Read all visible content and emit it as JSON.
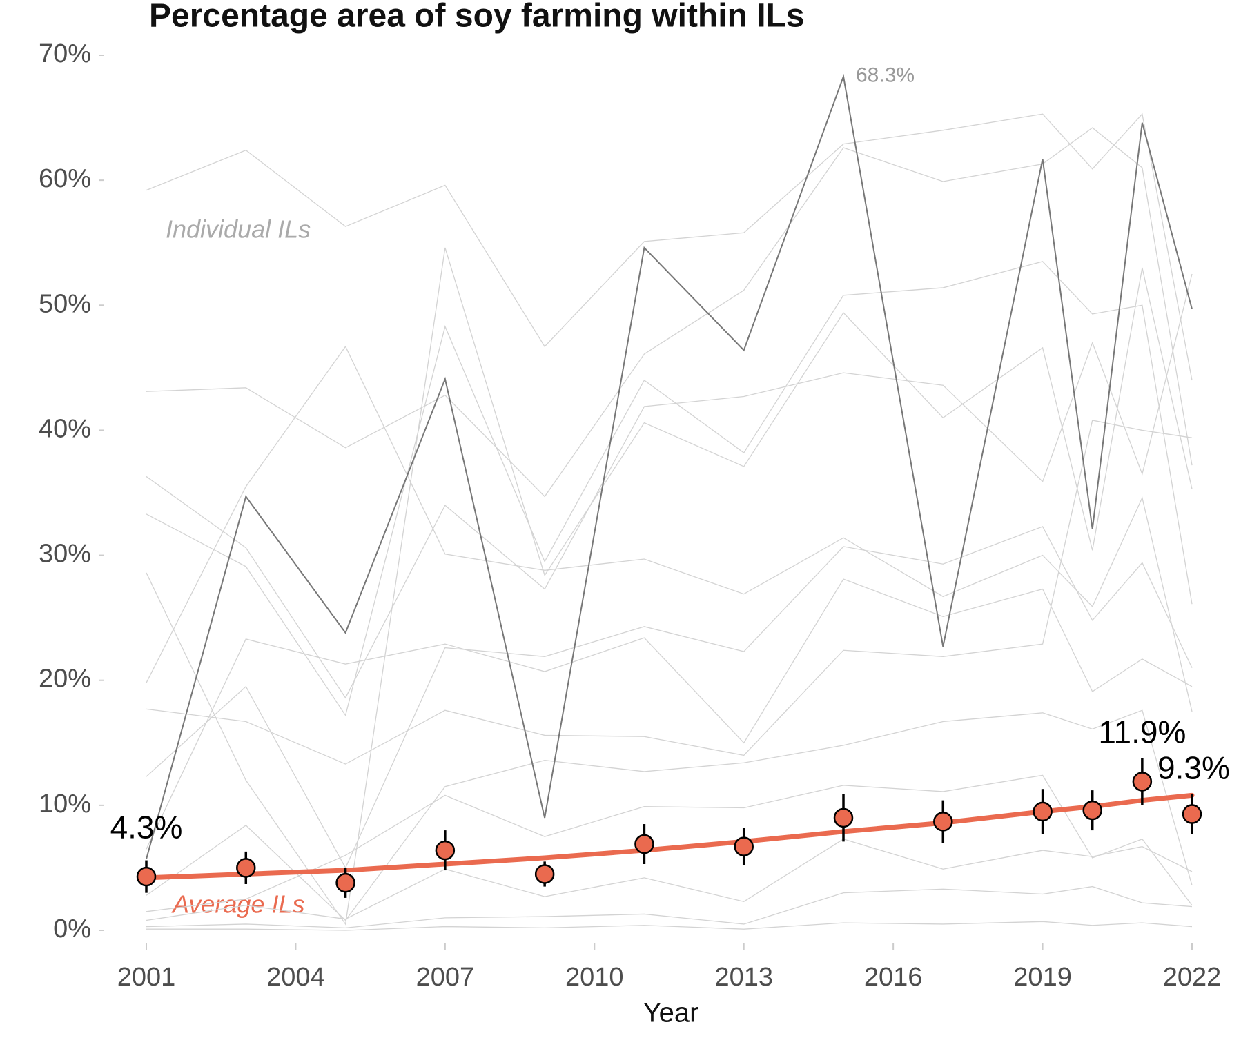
{
  "chart_data": {
    "type": "line",
    "title": "Percentage area of soy farming within ILs",
    "x_label": "Year",
    "annotations": [
      "Individual ILs"
    ],
    "x": [
      2001,
      2003,
      2005,
      2007,
      2009,
      2011,
      2013,
      2015,
      2017,
      2019,
      2020,
      2021,
      2022
    ],
    "xlim": [
      2000.2,
      2022.8
    ],
    "xticks": [
      2001,
      2004,
      2007,
      2010,
      2013,
      2016,
      2019,
      2022
    ],
    "ylim": [
      0,
      70
    ],
    "yticks": [
      {
        "value": 0,
        "label": "0%"
      },
      {
        "value": 10,
        "label": "10%"
      },
      {
        "value": 20,
        "label": "20%"
      },
      {
        "value": 30,
        "label": "30%"
      },
      {
        "value": 40,
        "label": "40%"
      },
      {
        "value": 50,
        "label": "50%"
      },
      {
        "value": 60,
        "label": "60%"
      },
      {
        "value": 70,
        "label": "70%"
      }
    ],
    "grid": false,
    "series": [
      {
        "style": "thin",
        "color": "#d3d3d3",
        "values": [
          59.2,
          62.4,
          56.3,
          59.6,
          46.7,
          55.1,
          55.8,
          62.9,
          64.0,
          65.3,
          60.9,
          65.3,
          44.0
        ]
      },
      {
        "style": "thin",
        "color": "#d3d3d3",
        "values": [
          43.1,
          43.4,
          38.6,
          42.8,
          34.7,
          46.1,
          51.2,
          62.6,
          59.9,
          61.3,
          64.2,
          61.0,
          37.2
        ]
      },
      {
        "style": "thin",
        "color": "#d3d3d3",
        "values": [
          36.3,
          30.6,
          18.6,
          34.0,
          27.3,
          41.9,
          42.7,
          44.6,
          43.6,
          35.9,
          47.0,
          36.5,
          52.5
        ]
      },
      {
        "style": "thin",
        "color": "#d3d3d3",
        "values": [
          33.3,
          29.1,
          17.2,
          48.3,
          29.5,
          44.0,
          38.2,
          50.8,
          51.4,
          53.5,
          49.3,
          50.0,
          26.1
        ]
      },
      {
        "style": "thin",
        "color": "#d3d3d3",
        "values": [
          28.6,
          12.0,
          0.5,
          54.6,
          28.4,
          40.6,
          37.1,
          49.4,
          41.0,
          46.6,
          30.4,
          53.0,
          35.3
        ]
      },
      {
        "style": "thin",
        "color": "#d3d3d3",
        "values": [
          19.8,
          35.5,
          46.7,
          30.1,
          28.8,
          29.7,
          26.9,
          31.4,
          26.7,
          30.0,
          25.9,
          34.6,
          17.5
        ]
      },
      {
        "style": "thin",
        "color": "#d3d3d3",
        "values": [
          17.7,
          16.7,
          13.3,
          17.6,
          15.6,
          15.5,
          14.0,
          22.4,
          21.9,
          22.9,
          40.8,
          40.0,
          39.4
        ]
      },
      {
        "style": "thin",
        "color": "#d3d3d3",
        "values": [
          12.3,
          19.5,
          5.0,
          22.6,
          21.9,
          24.3,
          22.3,
          30.7,
          29.3,
          32.3,
          24.8,
          29.4,
          21.0
        ]
      },
      {
        "style": "thin",
        "color": "#d3d3d3",
        "values": [
          6.5,
          23.3,
          21.3,
          22.9,
          20.7,
          23.4,
          15.0,
          28.1,
          25.1,
          27.3,
          19.1,
          21.7,
          19.5
        ]
      },
      {
        "style": "thin",
        "color": "#d3d3d3",
        "values": [
          2.8,
          8.4,
          0.8,
          11.5,
          13.6,
          12.7,
          13.4,
          14.8,
          16.7,
          17.4,
          16.1,
          17.6,
          3.6
        ]
      },
      {
        "style": "thin",
        "color": "#d3d3d3",
        "values": [
          1.5,
          2.5,
          6.0,
          10.8,
          7.5,
          9.9,
          9.8,
          11.6,
          11.1,
          12.4,
          5.8,
          7.3,
          2.0
        ]
      },
      {
        "style": "thin",
        "color": "#d3d3d3",
        "values": [
          0.8,
          2.0,
          0.9,
          4.9,
          2.7,
          4.2,
          2.3,
          7.3,
          4.9,
          6.4,
          5.9,
          6.7,
          4.7
        ]
      },
      {
        "style": "thin",
        "color": "#d3d3d3",
        "values": [
          0.3,
          0.5,
          0.2,
          1.0,
          1.1,
          1.3,
          0.5,
          3.0,
          3.3,
          2.9,
          3.5,
          2.2,
          1.9
        ]
      },
      {
        "style": "thin",
        "color": "#d3d3d3",
        "values": [
          0.1,
          0.1,
          0.0,
          0.3,
          0.2,
          0.4,
          0.1,
          0.6,
          0.5,
          0.7,
          0.4,
          0.6,
          0.3
        ]
      },
      {
        "style": "highlight",
        "color": "#777777",
        "values": [
          5.7,
          34.7,
          23.8,
          44.1,
          9.0,
          54.6,
          46.4,
          68.3,
          22.7,
          61.7,
          32.1,
          64.6,
          49.7
        ],
        "value_labels": [
          null,
          null,
          null,
          null,
          null,
          null,
          null,
          "68.3%",
          null,
          null,
          null,
          null,
          null
        ]
      },
      {
        "style": "trend",
        "name": "Average ILs",
        "color": "#ea6a4f",
        "values": [
          4.2,
          4.5,
          4.8,
          5.3,
          5.8,
          6.4,
          7.1,
          7.9,
          8.6,
          9.5,
          9.9,
          10.4,
          10.8
        ]
      },
      {
        "style": "points",
        "color": "#ea6a4f",
        "values": [
          4.3,
          5.0,
          3.8,
          6.4,
          4.5,
          6.9,
          6.7,
          9.0,
          8.7,
          9.5,
          9.6,
          11.9,
          9.3
        ],
        "errors": [
          1.3,
          1.3,
          1.2,
          1.6,
          1.0,
          1.6,
          1.5,
          1.9,
          1.7,
          1.8,
          1.6,
          1.9,
          1.6
        ],
        "value_labels": [
          "4.3%",
          null,
          null,
          null,
          null,
          null,
          null,
          null,
          null,
          null,
          null,
          "11.9%",
          "9.3%"
        ]
      }
    ]
  }
}
